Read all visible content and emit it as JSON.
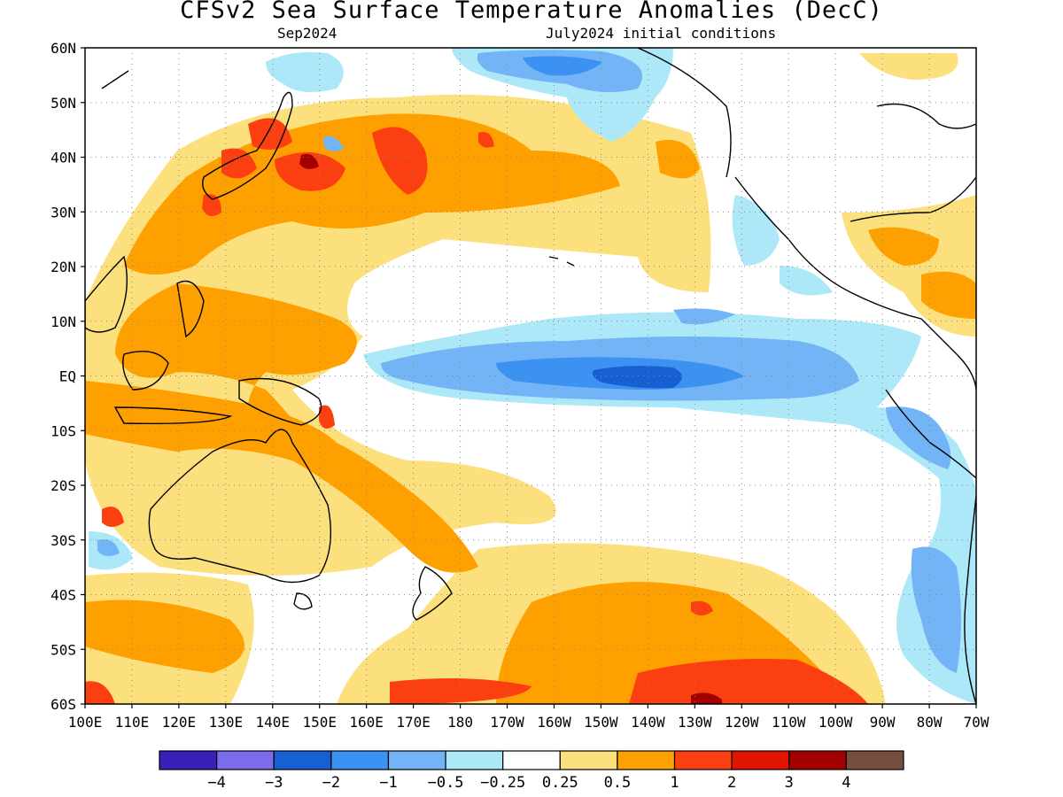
{
  "title": "CFSv2 Sea Surface Temperature Anomalies (DecC)",
  "subtitle_left": "Sep2024",
  "subtitle_right": "July2024 initial conditions",
  "y_ticks": [
    "60N",
    "50N",
    "40N",
    "30N",
    "20N",
    "10N",
    "EQ",
    "10S",
    "20S",
    "30S",
    "40S",
    "50S",
    "60S"
  ],
  "x_ticks": [
    "100E",
    "110E",
    "120E",
    "130E",
    "140E",
    "150E",
    "160E",
    "170E",
    "180",
    "170W",
    "160W",
    "150W",
    "140W",
    "130W",
    "120W",
    "110W",
    "100W",
    "90W",
    "80W",
    "70W"
  ],
  "colorbar": {
    "colors": [
      "#3a1fb8",
      "#7a6cea",
      "#1660d4",
      "#3c92f2",
      "#72b4f6",
      "#ade8f8",
      "#ffffff",
      "#fde07e",
      "#fda000",
      "#fb3f10",
      "#e11400",
      "#a40000",
      "#774d3e"
    ],
    "labels": [
      "−4",
      "−3",
      "−2",
      "−1",
      "−0.5",
      "−0.25",
      "0.25",
      "0.5",
      "1",
      "2",
      "3",
      "4"
    ]
  }
}
